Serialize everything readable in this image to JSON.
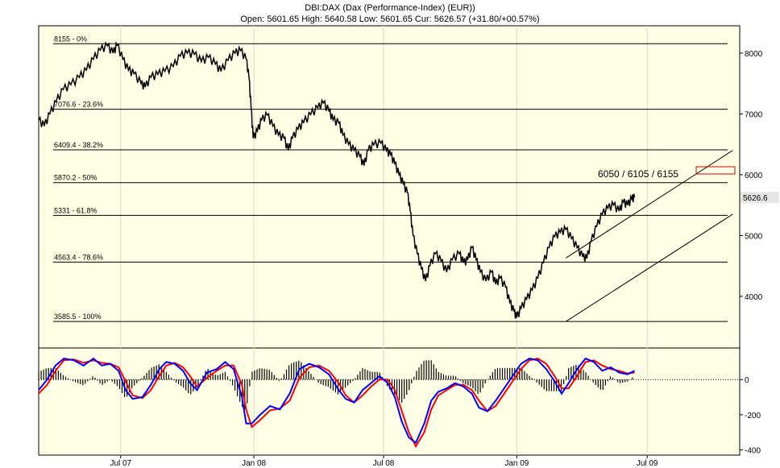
{
  "title": "DBI:DAX (Dax (Performance-Index) (EUR))",
  "subtitle": "Open: 5601.65 High: 5640.58 Low: 5601.65 Cur: 5626.57 (+31.80/+00.57%)",
  "colors": {
    "background": "#ffffe6",
    "price": "#000000",
    "macd": "#0000ff",
    "signal": "#ff0000",
    "target_box": "#cc0000",
    "current_label_bg": "#e6e6e6"
  },
  "chart_data": [
    {
      "type": "line",
      "name": "price",
      "x_ticks": [
        "Jul 07",
        "Jan 08",
        "Jul 08",
        "Jan 09",
        "Jul 09"
      ],
      "y_ticks": [
        4000,
        5000,
        6000,
        7000,
        8000
      ],
      "ylim": [
        3150,
        8450
      ],
      "fib_levels": [
        {
          "value": 8155,
          "label": "8155 - 0%"
        },
        {
          "value": 7076.6,
          "label": "7076.6 - 23.6%"
        },
        {
          "value": 6409.4,
          "label": "6409.4 - 38.2%"
        },
        {
          "value": 5870.2,
          "label": "5870.2 - 50%"
        },
        {
          "value": 5331,
          "label": "5331 - 61.8%"
        },
        {
          "value": 4563.4,
          "label": "4563.4 - 78.6%"
        },
        {
          "value": 3585.5,
          "label": "3585.5 - 100%"
        }
      ],
      "target_annotation": "6050 / 6105 / 6155",
      "current_value_label": "5626.6",
      "current_value": 5626.6,
      "trend_channel": {
        "lower": {
          "from": {
            "t": 0.752,
            "v": 3585
          },
          "to": {
            "t": 0.99,
            "v": 5350
          }
        },
        "upper": {
          "from": {
            "t": 0.752,
            "v": 4630
          },
          "to": {
            "t": 0.99,
            "v": 6400
          }
        }
      },
      "points": [
        [
          0.0,
          6900
        ],
        [
          0.008,
          6800
        ],
        [
          0.016,
          7000
        ],
        [
          0.025,
          7200
        ],
        [
          0.035,
          7400
        ],
        [
          0.046,
          7480
        ],
        [
          0.058,
          7600
        ],
        [
          0.068,
          7720
        ],
        [
          0.078,
          7900
        ],
        [
          0.088,
          8050
        ],
        [
          0.098,
          8120
        ],
        [
          0.106,
          8000
        ],
        [
          0.112,
          8130
        ],
        [
          0.12,
          7900
        ],
        [
          0.128,
          7720
        ],
        [
          0.136,
          7660
        ],
        [
          0.146,
          7500
        ],
        [
          0.152,
          7440
        ],
        [
          0.16,
          7600
        ],
        [
          0.17,
          7650
        ],
        [
          0.18,
          7700
        ],
        [
          0.192,
          7780
        ],
        [
          0.202,
          7950
        ],
        [
          0.212,
          8000
        ],
        [
          0.222,
          7980
        ],
        [
          0.232,
          7860
        ],
        [
          0.242,
          7930
        ],
        [
          0.252,
          7820
        ],
        [
          0.26,
          7700
        ],
        [
          0.27,
          7880
        ],
        [
          0.28,
          8000
        ],
        [
          0.288,
          8040
        ],
        [
          0.296,
          7900
        ],
        [
          0.3,
          7600
        ],
        [
          0.303,
          7100
        ],
        [
          0.306,
          6600
        ],
        [
          0.312,
          6720
        ],
        [
          0.318,
          6900
        ],
        [
          0.326,
          6980
        ],
        [
          0.334,
          6800
        ],
        [
          0.342,
          6650
        ],
        [
          0.35,
          6600
        ],
        [
          0.356,
          6400
        ],
        [
          0.362,
          6600
        ],
        [
          0.37,
          6750
        ],
        [
          0.378,
          6860
        ],
        [
          0.388,
          6990
        ],
        [
          0.398,
          7100
        ],
        [
          0.406,
          7180
        ],
        [
          0.414,
          7050
        ],
        [
          0.42,
          6900
        ],
        [
          0.428,
          6850
        ],
        [
          0.434,
          6650
        ],
        [
          0.442,
          6500
        ],
        [
          0.45,
          6400
        ],
        [
          0.458,
          6300
        ],
        [
          0.464,
          6150
        ],
        [
          0.47,
          6400
        ],
        [
          0.478,
          6490
        ],
        [
          0.488,
          6520
        ],
        [
          0.496,
          6400
        ],
        [
          0.502,
          6330
        ],
        [
          0.508,
          6180
        ],
        [
          0.514,
          6000
        ],
        [
          0.52,
          5850
        ],
        [
          0.526,
          5700
        ],
        [
          0.53,
          5400
        ],
        [
          0.534,
          5000
        ],
        [
          0.54,
          4700
        ],
        [
          0.546,
          4450
        ],
        [
          0.552,
          4250
        ],
        [
          0.558,
          4500
        ],
        [
          0.566,
          4700
        ],
        [
          0.574,
          4580
        ],
        [
          0.582,
          4400
        ],
        [
          0.59,
          4600
        ],
        [
          0.6,
          4700
        ],
        [
          0.606,
          4550
        ],
        [
          0.612,
          4600
        ],
        [
          0.618,
          4800
        ],
        [
          0.624,
          4600
        ],
        [
          0.63,
          4400
        ],
        [
          0.638,
          4250
        ],
        [
          0.646,
          4400
        ],
        [
          0.652,
          4200
        ],
        [
          0.658,
          4300
        ],
        [
          0.666,
          4150
        ],
        [
          0.672,
          3900
        ],
        [
          0.678,
          3750
        ],
        [
          0.682,
          3650
        ],
        [
          0.688,
          3800
        ],
        [
          0.696,
          3950
        ],
        [
          0.704,
          4100
        ],
        [
          0.712,
          4300
        ],
        [
          0.72,
          4550
        ],
        [
          0.728,
          4800
        ],
        [
          0.736,
          4980
        ],
        [
          0.744,
          5050
        ],
        [
          0.752,
          5100
        ],
        [
          0.76,
          4950
        ],
        [
          0.768,
          4800
        ],
        [
          0.776,
          4650
        ],
        [
          0.782,
          4620
        ],
        [
          0.788,
          4900
        ],
        [
          0.796,
          5150
        ],
        [
          0.804,
          5350
        ],
        [
          0.812,
          5450
        ],
        [
          0.82,
          5500
        ],
        [
          0.828,
          5400
        ],
        [
          0.834,
          5550
        ],
        [
          0.84,
          5500
        ],
        [
          0.846,
          5600
        ],
        [
          0.85,
          5626.6
        ]
      ]
    },
    {
      "type": "line",
      "name": "oscillator",
      "y_ticks": [
        0,
        -200,
        -400
      ],
      "ylim": [
        -430,
        180
      ],
      "macd": [
        [
          0.0,
          -60
        ],
        [
          0.012,
          0
        ],
        [
          0.024,
          80
        ],
        [
          0.036,
          120
        ],
        [
          0.05,
          110
        ],
        [
          0.064,
          80
        ],
        [
          0.078,
          120
        ],
        [
          0.09,
          80
        ],
        [
          0.102,
          90
        ],
        [
          0.114,
          50
        ],
        [
          0.124,
          -60
        ],
        [
          0.134,
          -110
        ],
        [
          0.148,
          -100
        ],
        [
          0.16,
          -30
        ],
        [
          0.172,
          60
        ],
        [
          0.182,
          100
        ],
        [
          0.194,
          90
        ],
        [
          0.206,
          50
        ],
        [
          0.216,
          -20
        ],
        [
          0.226,
          -60
        ],
        [
          0.24,
          40
        ],
        [
          0.254,
          60
        ],
        [
          0.266,
          100
        ],
        [
          0.278,
          60
        ],
        [
          0.29,
          -100
        ],
        [
          0.296,
          -250
        ],
        [
          0.304,
          -250
        ],
        [
          0.316,
          -200
        ],
        [
          0.33,
          -150
        ],
        [
          0.344,
          -170
        ],
        [
          0.358,
          -80
        ],
        [
          0.372,
          60
        ],
        [
          0.386,
          90
        ],
        [
          0.4,
          70
        ],
        [
          0.414,
          30
        ],
        [
          0.428,
          -60
        ],
        [
          0.438,
          -110
        ],
        [
          0.45,
          -130
        ],
        [
          0.462,
          -60
        ],
        [
          0.474,
          -20
        ],
        [
          0.486,
          20
        ],
        [
          0.498,
          -20
        ],
        [
          0.508,
          -100
        ],
        [
          0.518,
          -240
        ],
        [
          0.528,
          -330
        ],
        [
          0.538,
          -360
        ],
        [
          0.55,
          -250
        ],
        [
          0.56,
          -120
        ],
        [
          0.57,
          -70
        ],
        [
          0.582,
          -50
        ],
        [
          0.594,
          -20
        ],
        [
          0.606,
          -40
        ],
        [
          0.618,
          -80
        ],
        [
          0.628,
          -160
        ],
        [
          0.64,
          -180
        ],
        [
          0.652,
          -120
        ],
        [
          0.664,
          -50
        ],
        [
          0.676,
          20
        ],
        [
          0.688,
          90
        ],
        [
          0.7,
          120
        ],
        [
          0.712,
          110
        ],
        [
          0.724,
          60
        ],
        [
          0.736,
          -10
        ],
        [
          0.746,
          -80
        ],
        [
          0.756,
          -20
        ],
        [
          0.768,
          60
        ],
        [
          0.78,
          120
        ],
        [
          0.792,
          100
        ],
        [
          0.804,
          50
        ],
        [
          0.816,
          70
        ],
        [
          0.828,
          40
        ],
        [
          0.84,
          30
        ],
        [
          0.85,
          50
        ]
      ],
      "signal": [
        [
          0.0,
          -80
        ],
        [
          0.012,
          -30
        ],
        [
          0.024,
          50
        ],
        [
          0.036,
          110
        ],
        [
          0.05,
          115
        ],
        [
          0.064,
          95
        ],
        [
          0.078,
          110
        ],
        [
          0.09,
          95
        ],
        [
          0.102,
          90
        ],
        [
          0.114,
          70
        ],
        [
          0.124,
          -10
        ],
        [
          0.134,
          -90
        ],
        [
          0.148,
          -105
        ],
        [
          0.16,
          -60
        ],
        [
          0.172,
          20
        ],
        [
          0.182,
          80
        ],
        [
          0.194,
          95
        ],
        [
          0.206,
          70
        ],
        [
          0.216,
          20
        ],
        [
          0.226,
          -40
        ],
        [
          0.24,
          10
        ],
        [
          0.254,
          50
        ],
        [
          0.266,
          80
        ],
        [
          0.278,
          80
        ],
        [
          0.29,
          -30
        ],
        [
          0.296,
          -170
        ],
        [
          0.304,
          -270
        ],
        [
          0.316,
          -230
        ],
        [
          0.33,
          -175
        ],
        [
          0.344,
          -165
        ],
        [
          0.358,
          -120
        ],
        [
          0.372,
          10
        ],
        [
          0.386,
          70
        ],
        [
          0.4,
          80
        ],
        [
          0.414,
          50
        ],
        [
          0.428,
          -20
        ],
        [
          0.438,
          -90
        ],
        [
          0.45,
          -130
        ],
        [
          0.462,
          -90
        ],
        [
          0.474,
          -40
        ],
        [
          0.486,
          0
        ],
        [
          0.498,
          0
        ],
        [
          0.508,
          -60
        ],
        [
          0.518,
          -180
        ],
        [
          0.528,
          -300
        ],
        [
          0.538,
          -380
        ],
        [
          0.55,
          -300
        ],
        [
          0.56,
          -170
        ],
        [
          0.57,
          -90
        ],
        [
          0.582,
          -60
        ],
        [
          0.594,
          -30
        ],
        [
          0.606,
          -30
        ],
        [
          0.618,
          -60
        ],
        [
          0.628,
          -120
        ],
        [
          0.64,
          -180
        ],
        [
          0.652,
          -150
        ],
        [
          0.664,
          -80
        ],
        [
          0.676,
          -10
        ],
        [
          0.688,
          60
        ],
        [
          0.7,
          110
        ],
        [
          0.712,
          120
        ],
        [
          0.724,
          90
        ],
        [
          0.736,
          20
        ],
        [
          0.746,
          -50
        ],
        [
          0.756,
          -50
        ],
        [
          0.768,
          20
        ],
        [
          0.78,
          100
        ],
        [
          0.792,
          110
        ],
        [
          0.804,
          80
        ],
        [
          0.816,
          60
        ],
        [
          0.828,
          50
        ],
        [
          0.84,
          35
        ],
        [
          0.85,
          40
        ]
      ]
    }
  ]
}
